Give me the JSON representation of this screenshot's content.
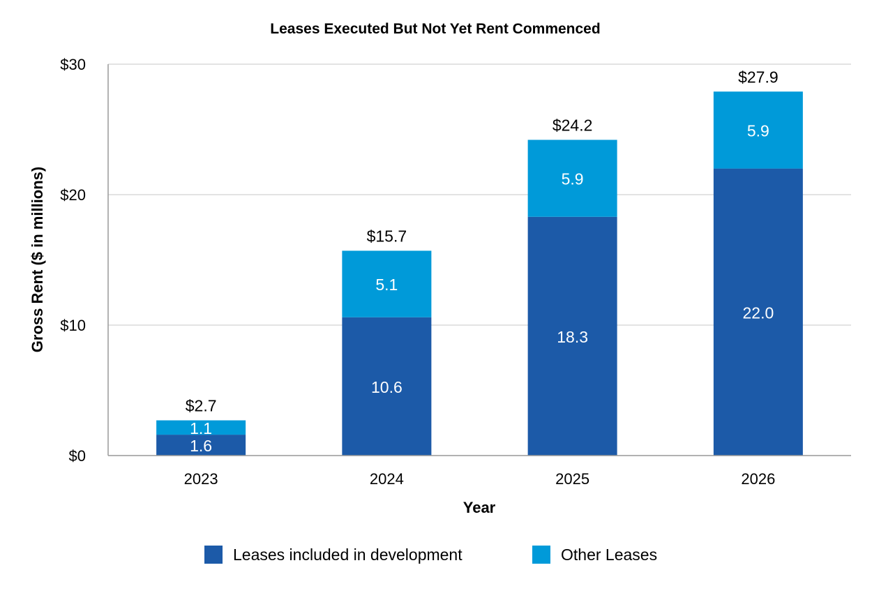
{
  "chart_data": {
    "type": "bar",
    "stacked": true,
    "title": "Leases Executed But Not Yet Rent Commenced",
    "xlabel": "Year",
    "ylabel": "Gross Rent ($ in millions)",
    "ylim": [
      0,
      30
    ],
    "yticks": [
      0,
      10,
      20,
      30
    ],
    "ytick_labels": [
      "$0",
      "$10",
      "$20",
      "$30"
    ],
    "grid": true,
    "legend_position": "bottom",
    "categories": [
      "2023",
      "2024",
      "2025",
      "2026"
    ],
    "series": [
      {
        "name": "Leases included in development",
        "color": "#1c5aa8",
        "values": [
          1.6,
          10.6,
          18.3,
          22.0
        ],
        "labels": [
          "1.6",
          "10.6",
          "18.3",
          "22.0"
        ]
      },
      {
        "name": "Other Leases",
        "color": "#009ad9",
        "values": [
          1.1,
          5.1,
          5.9,
          5.9
        ],
        "labels": [
          "1.1",
          "5.1",
          "5.9",
          "5.9"
        ]
      }
    ],
    "totals": [
      2.7,
      15.7,
      24.2,
      27.9
    ],
    "total_labels": [
      "$2.7",
      "$15.7",
      "$24.2",
      "$27.9"
    ]
  }
}
